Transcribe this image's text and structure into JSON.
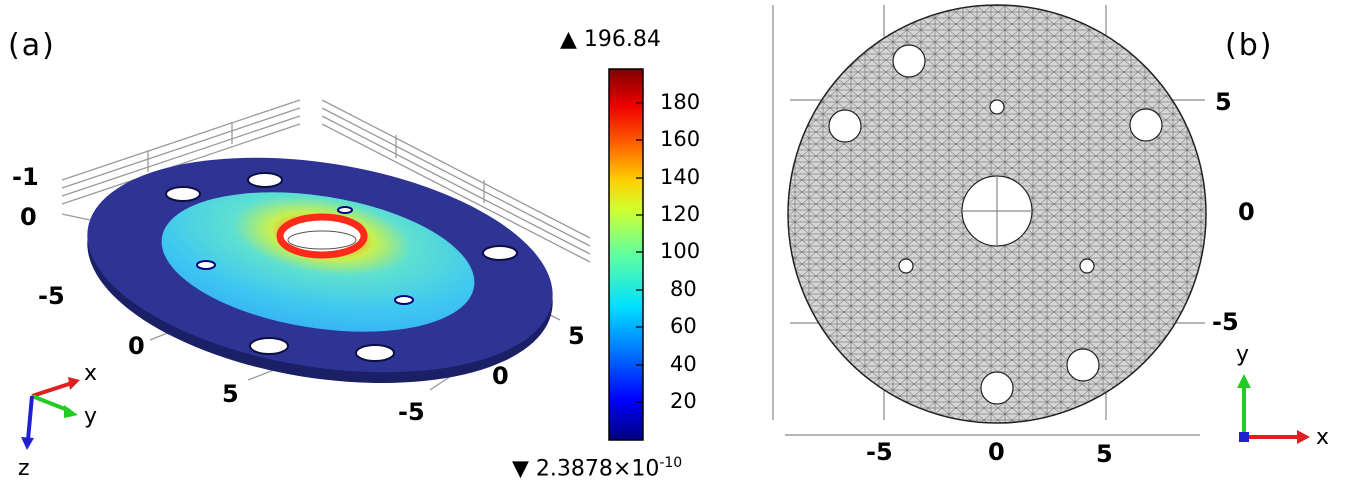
{
  "panel_a": {
    "label": "(a)",
    "ticks": {
      "z_top": "-1",
      "z_zero": "0",
      "left_neg5": "-5",
      "left_zero": "0",
      "left_5": "5",
      "right_5": "5",
      "right_zero": "0",
      "right_neg5": "-5"
    },
    "triad": {
      "x": "x",
      "y": "y",
      "z": "z"
    }
  },
  "colorbar": {
    "max_label": "▲ 196.84",
    "min_prefix": "▼ 2.3878×10",
    "min_exponent": "-10",
    "ticks": [
      "180",
      "160",
      "140",
      "120",
      "100",
      "80",
      "60",
      "40",
      "20"
    ],
    "colormap": "rainbow",
    "range": [
      0,
      196.84
    ]
  },
  "panel_b": {
    "label": "(b)",
    "y_ticks": [
      "5",
      "0",
      "-5"
    ],
    "x_ticks": [
      "-5",
      "0",
      "5"
    ],
    "triad": {
      "x": "x",
      "y": "y"
    }
  },
  "colors": {
    "disk_outer": "#2e3494",
    "mesh_fill": "#d6d6d6",
    "mesh_line": "#444444",
    "triad_x": "#e02020",
    "triad_y": "#22cc22",
    "triad_z": "#2020d0"
  }
}
